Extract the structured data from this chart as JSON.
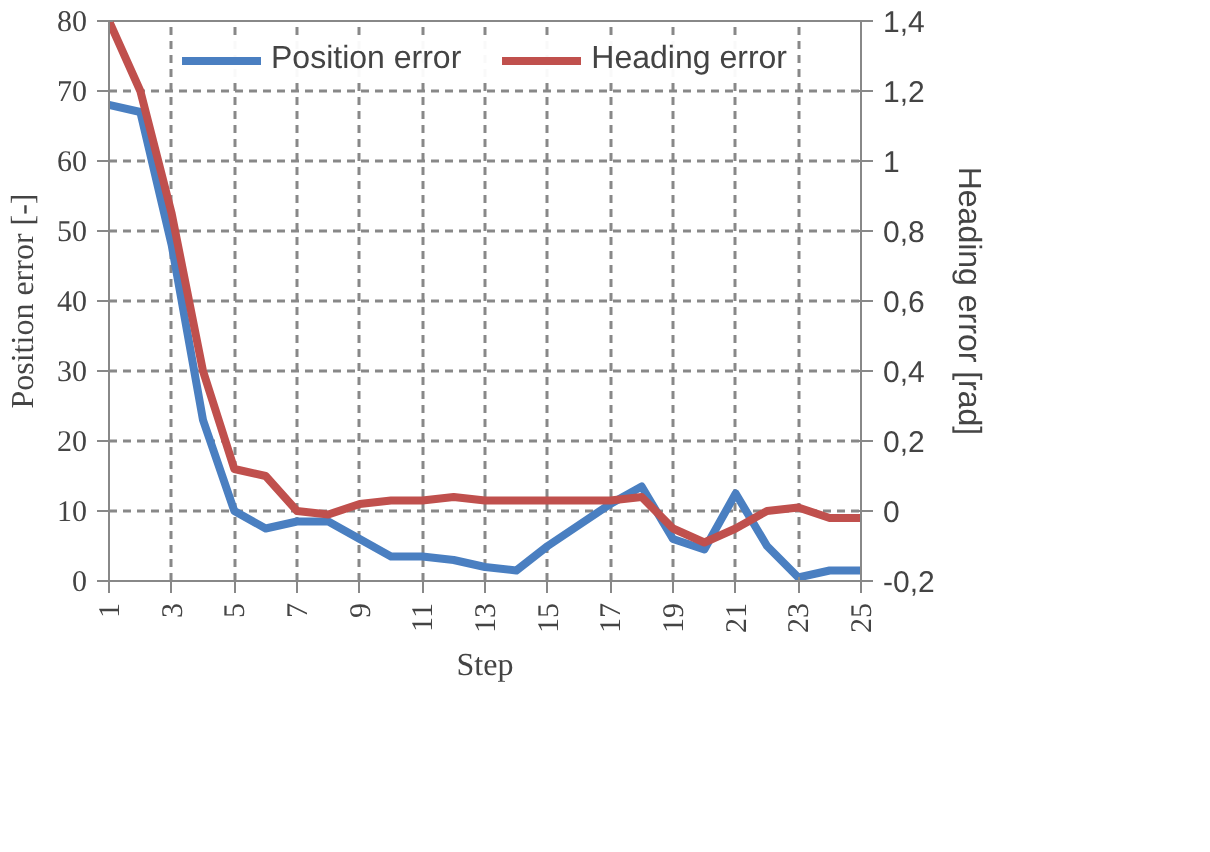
{
  "chart_data": {
    "type": "line",
    "xlabel": "Step",
    "ylabel": "Position error [-]",
    "y2label": "Heading error [rad]",
    "categories": [
      "1",
      null,
      "3",
      null,
      "5",
      null,
      "7",
      null,
      "9",
      null,
      "11",
      null,
      "13",
      null,
      "15",
      null,
      "17",
      null,
      "19",
      null,
      "21",
      null,
      "23",
      null,
      "25"
    ],
    "series": [
      {
        "name": "Position error",
        "color": "#4a7fc1",
        "values": [
          68,
          67,
          48,
          23,
          10,
          7.5,
          8.5,
          8.5,
          6,
          3.5,
          3.5,
          3,
          2,
          1.5,
          5,
          8,
          11,
          13.5,
          6,
          4.5,
          12.5,
          5,
          0.5,
          1.5,
          1.5
        ]
      },
      {
        "name": "Heading error",
        "color": "#c0504d",
        "axis": "y2",
        "values": [
          1.4,
          1.2,
          0.85,
          0.4,
          0.12,
          0.1,
          0,
          -0.01,
          0.02,
          0.03,
          0.03,
          0.04,
          0.03,
          0.03,
          0.03,
          0.03,
          0.03,
          0.04,
          -0.05,
          -0.09,
          -0.05,
          0,
          0.01,
          -0.02,
          -0.02
        ]
      }
    ],
    "ylim": [
      0,
      80
    ],
    "yticks": [
      0,
      10,
      20,
      30,
      40,
      50,
      60,
      70,
      80
    ],
    "y2lim": [
      -0.2,
      1.4
    ],
    "y2ticks": [
      {
        "value": -0.2,
        "label": "-0,2"
      },
      0,
      {
        "value": 0.2,
        "label": "0,2"
      },
      {
        "value": 0.4,
        "label": "0,4"
      },
      {
        "value": 0.6,
        "label": "0,6"
      },
      {
        "value": 0.8,
        "label": "0,8"
      },
      1,
      {
        "value": 1.2,
        "label": "1,2"
      },
      {
        "value": 1.4,
        "label": "1,4"
      }
    ],
    "grid": true,
    "legend": "top",
    "line_style": "solid",
    "marker": "none"
  }
}
